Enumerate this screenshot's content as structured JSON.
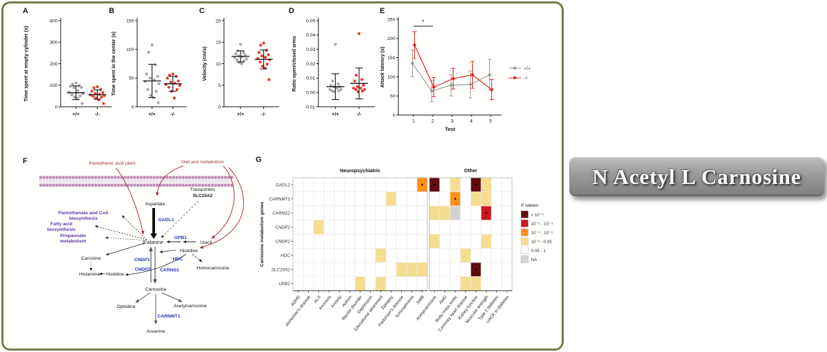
{
  "panels": {
    "A": "A",
    "B": "B",
    "C": "C",
    "D": "D",
    "E": "E",
    "F": "F",
    "G": "G"
  },
  "banner": {
    "label": "N Acetyl L Carnosine"
  },
  "colors": {
    "wildtype_gray": "#9b9b9b",
    "knockout_red": "#e3231d",
    "figure_border": "#727d4e",
    "pathway_red": "#a4343a",
    "enzyme_blue": "#2433b4",
    "pathway_purple": "#5b35a8"
  },
  "chart_data": [
    {
      "id": "A",
      "type": "scatter",
      "ylabel": "Time spent at empty cylinder (s)",
      "ylim": [
        0,
        400
      ],
      "yticks": [
        0,
        100,
        200,
        300,
        400
      ],
      "ytick_labels": [
        "0",
        "100",
        "200",
        "300",
        "400"
      ],
      "categories": [
        "+/+",
        "-/-"
      ],
      "series": [
        {
          "name": "+/+",
          "color": "#9b9b9b",
          "mean": 65,
          "err": [
            33,
            97
          ],
          "values": [
            110,
            105,
            98,
            95,
            90,
            88,
            75,
            68,
            62,
            55,
            50,
            45,
            40,
            15
          ]
        },
        {
          "name": "-/-",
          "color": "#e3231d",
          "mean": 56,
          "err": [
            35,
            78
          ],
          "values": [
            93,
            88,
            80,
            72,
            66,
            62,
            58,
            55,
            52,
            48,
            45,
            40,
            32,
            15
          ]
        }
      ]
    },
    {
      "id": "B",
      "type": "scatter",
      "ylabel": "Time spent in the center (s)",
      "ylim": [
        0,
        150
      ],
      "yticks": [
        0,
        50,
        100,
        150
      ],
      "ytick_labels": [
        "0",
        "50",
        "100",
        "150"
      ],
      "categories": [
        "+/+",
        "-/-"
      ],
      "series": [
        {
          "name": "+/+",
          "color": "#9b9b9b",
          "mean": 45,
          "err": [
            16,
            74
          ],
          "values": [
            108,
            95,
            73,
            57,
            53,
            50,
            47,
            44,
            40,
            30,
            27,
            20,
            16,
            7
          ]
        },
        {
          "name": "-/-",
          "color": "#e3231d",
          "mean": 40,
          "err": [
            27,
            53
          ],
          "values": [
            57,
            55,
            53,
            50,
            45,
            43,
            41,
            39,
            37,
            34,
            30,
            27,
            15
          ]
        }
      ]
    },
    {
      "id": "C",
      "type": "scatter",
      "ylabel": "Velocity (cm/s)",
      "ylim": [
        0,
        20
      ],
      "yticks": [
        0,
        5,
        10,
        15,
        20
      ],
      "ytick_labels": [
        "0",
        "5",
        "10",
        "15",
        "20"
      ],
      "categories": [
        "+/+",
        "-/-"
      ],
      "series": [
        {
          "name": "+/+",
          "color": "#9b9b9b",
          "mean": 11.7,
          "err": [
            10.4,
            13.0
          ],
          "values": [
            14.5,
            13.0,
            12.6,
            12.3,
            12.0,
            11.8,
            11.6,
            11.4,
            11.1,
            10.9,
            10.6,
            10.3,
            10.0
          ]
        },
        {
          "name": "-/-",
          "color": "#e3231d",
          "mean": 11.0,
          "err": [
            8.8,
            13.2
          ],
          "values": [
            14.8,
            14.3,
            13.1,
            12.6,
            12.1,
            11.8,
            11.5,
            11.2,
            10.9,
            10.4,
            9.9,
            9.4,
            9.0,
            6.3
          ]
        }
      ]
    },
    {
      "id": "D",
      "type": "scatter",
      "ylabel": "Ratio open/closed arms",
      "ylim": [
        -0.01,
        0.05
      ],
      "yticks": [
        -0.01,
        0,
        0.01,
        0.02,
        0.03,
        0.04,
        0.05
      ],
      "ytick_labels": [
        "-0.01",
        "0.00",
        "0.01",
        "0.02",
        "0.03",
        "0.04",
        "0.05"
      ],
      "categories": [
        "+/+",
        "-/-"
      ],
      "series": [
        {
          "name": "+/+",
          "color": "#9b9b9b",
          "mean": 0.004,
          "err": [
            -0.005,
            0.013
          ],
          "values": [
            0.0335,
            0.008,
            0.006,
            0.005,
            0.004,
            0.004,
            0.003,
            0.002,
            0.002,
            0.001,
            0.001,
            0.0005
          ]
        },
        {
          "name": "-/-",
          "color": "#e3231d",
          "mean": 0.0063,
          "err": [
            -0.0045,
            0.017
          ],
          "values": [
            0.041,
            0.012,
            0.009,
            0.008,
            0.005,
            0.004,
            0.003,
            0.003,
            0.002,
            0.002,
            0.001,
            0.0005
          ]
        }
      ]
    },
    {
      "id": "E",
      "type": "line",
      "ylabel": "Attack latency (s)",
      "xlabel": "Test",
      "ylim": [
        0,
        250
      ],
      "yticks": [
        0,
        50,
        100,
        150,
        200,
        250
      ],
      "ytick_labels": [
        "0",
        "50",
        "100",
        "150",
        "200",
        "250"
      ],
      "x": [
        1,
        2,
        3,
        4,
        5
      ],
      "series": [
        {
          "name": "+/+",
          "color": "#9b9b9b",
          "values": [
            135,
            63,
            78,
            80,
            105
          ],
          "err_low": [
            100,
            35,
            50,
            45,
            65
          ],
          "err_high": [
            170,
            90,
            105,
            115,
            145
          ]
        },
        {
          "name": "-/-",
          "color": "#e3231d",
          "values": [
            183,
            73,
            95,
            105,
            66
          ],
          "err_low": [
            148,
            48,
            68,
            70,
            40
          ],
          "err_high": [
            218,
            98,
            122,
            140,
            93
          ]
        }
      ],
      "significance": {
        "x1": 1,
        "x2": 2,
        "y": 232,
        "label": "*"
      }
    },
    {
      "id": "G",
      "type": "heatmap",
      "ylabel": "Carnosine metabolism genes",
      "rows": [
        "GADL1",
        "CARNMT1",
        "CARNS1",
        "CNDP1",
        "CNDP2",
        "HDC",
        "SLC15A2",
        "UPB1"
      ],
      "col_groups": [
        {
          "label": "Neuropsychiatric",
          "cols": [
            "ADHD",
            "Alzheimer's disease",
            "ALS",
            "Anorexia",
            "Anxiety",
            "Autism",
            "Bipolar disorder",
            "Depression",
            "Educational attainment",
            "Epilepsy",
            "Parkinson's disease",
            "Schizophrenia",
            "SWB"
          ]
        },
        {
          "label": "Other",
          "cols": [
            "Acetylcarnosine",
            "AMD",
            "Body mass index",
            "Coronary heart disease",
            "Kidney function",
            "Muscular strength",
            "Type 2 diabetes",
            "UACR in diabetes"
          ]
        }
      ],
      "legend": {
        "title": "P values",
        "entries": [
          {
            "label": "< 10⁻⁶",
            "color": "#5e0c10"
          },
          {
            "label": "10⁻⁶ - 10⁻⁴",
            "color": "#cb181d"
          },
          {
            "label": "10⁻⁴ - 10⁻³",
            "color": "#fd9017"
          },
          {
            "label": "10⁻³ - 0.05",
            "color": "#f6dd90"
          },
          {
            "label": "0.05 - 1",
            "color": "#ffffff"
          },
          {
            "label": "NA",
            "color": "#d2d2d2"
          }
        ]
      },
      "cells": [
        {
          "row": "GADL1",
          "col": "SWB",
          "level": 2,
          "star": true
        },
        {
          "row": "GADL1",
          "col": "Acetylcarnosine",
          "level": 0,
          "star": true
        },
        {
          "row": "GADL1",
          "col": "Body mass index",
          "level": 3,
          "star": false
        },
        {
          "row": "GADL1",
          "col": "Kidney function",
          "level": 0,
          "star": true
        },
        {
          "row": "GADL1",
          "col": "Muscular strength",
          "level": 3,
          "star": false
        },
        {
          "row": "CARNMT1",
          "col": "Epilepsy",
          "level": 3,
          "star": false
        },
        {
          "row": "CARNMT1",
          "col": "Body mass index",
          "level": 2,
          "star": true
        },
        {
          "row": "CARNMT1",
          "col": "Kidney function",
          "level": 3,
          "star": false
        },
        {
          "row": "CARNMT1",
          "col": "Muscular strength",
          "level": 3,
          "star": false
        },
        {
          "row": "CARNS1",
          "col": "Acetylcarnosine",
          "level": 3,
          "star": false
        },
        {
          "row": "CARNS1",
          "col": "AMD",
          "level": 3,
          "star": false
        },
        {
          "row": "CARNS1",
          "col": "Body mass index",
          "level": 5,
          "star": false
        },
        {
          "row": "CARNS1",
          "col": "Muscular strength",
          "level": 1,
          "star": true
        },
        {
          "row": "CNDP1",
          "col": "ALS",
          "level": 3,
          "star": false
        },
        {
          "row": "CNDP2",
          "col": "Acetylcarnosine",
          "level": 3,
          "star": false
        },
        {
          "row": "CNDP2",
          "col": "Muscular strength",
          "level": 3,
          "star": false
        },
        {
          "row": "HDC",
          "col": "Educational attainment",
          "level": 3,
          "star": false
        },
        {
          "row": "HDC",
          "col": "Coronary heart disease",
          "level": 3,
          "star": false
        },
        {
          "row": "SLC15A2",
          "col": "Parkinson's disease",
          "level": 3,
          "star": false
        },
        {
          "row": "SLC15A2",
          "col": "Schizophrenia",
          "level": 3,
          "star": false
        },
        {
          "row": "SLC15A2",
          "col": "SWB",
          "level": 3,
          "star": false
        },
        {
          "row": "SLC15A2",
          "col": "Kidney function",
          "level": 0,
          "star": true
        },
        {
          "row": "UPB1",
          "col": "Bipolar disorder",
          "level": 3,
          "star": false
        },
        {
          "row": "UPB1",
          "col": "Educational attainment",
          "level": 3,
          "star": false
        },
        {
          "row": "UPB1",
          "col": "Coronary heart disease",
          "level": 3,
          "star": false
        },
        {
          "row": "UPB1",
          "col": "Kidney function",
          "level": 3,
          "star": false
        }
      ]
    }
  ],
  "pathway": {
    "inputs": {
      "pantothenic": "Pantothenic acid (diet)",
      "diet": "Diet and metabolism"
    },
    "transporters_label": "Transporters",
    "transporter_gene": "SLC15A2",
    "metabolites": {
      "aspartate": "Aspartate",
      "beta_alanine": "β-alanine",
      "uracil": "Uracil",
      "histidine_r": "Histidine",
      "homocarnosine": "Homocarnosine",
      "carcinine": "Carcinine",
      "histamine": "Histamine",
      "histidine_l": "Histidine",
      "carnosine": "Carnosine",
      "ophidine": "Ophidine",
      "acetylcarnosine": "Acetylcarnosine",
      "anserine": "Anserine"
    },
    "enzymes": {
      "gadl1": "GADL1",
      "upb1": "UPB1",
      "cndp1": "CNDP1",
      "cndp2": "CNDP2",
      "carns1": "CARNS1",
      "hdc": "HDC",
      "carnmt1": "CARNMT1"
    },
    "pathways_purple": {
      "pantothenate_1": "Pantothenate and CoA",
      "pantothenate_2": "biosynthesis",
      "fatty_1": "Fatty acid",
      "fatty_2": "biosynthesis",
      "propaonate_1": "Propaonate",
      "propaonate_2": "metabolism"
    }
  }
}
